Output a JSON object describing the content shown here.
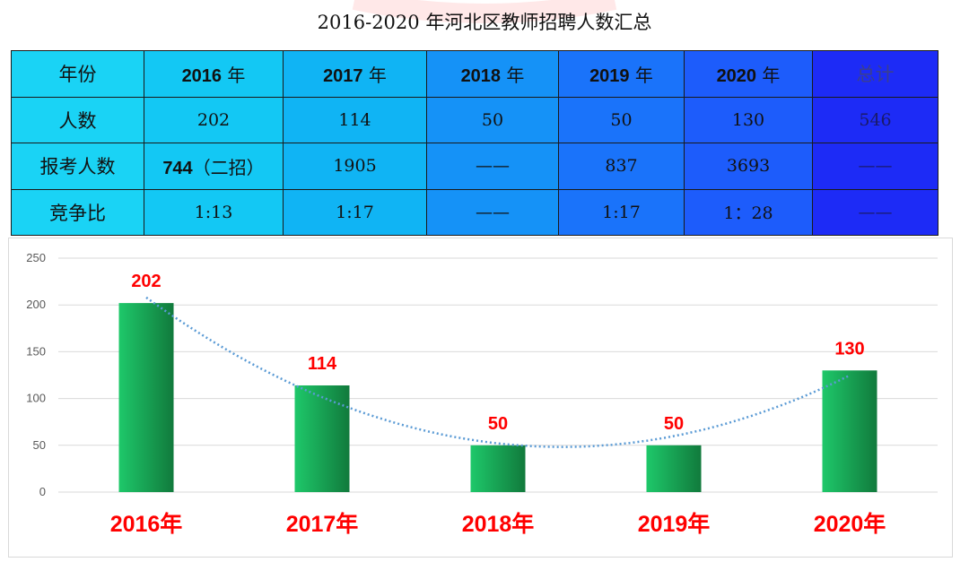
{
  "title": "2016-2020 年河北区教师招聘人数汇总",
  "table": {
    "header": [
      "年份",
      "2016",
      "2017",
      "2018",
      "2019",
      "2020",
      "总计"
    ],
    "year_suffix": " 年",
    "rows": [
      {
        "label": "人数",
        "cells": [
          "202",
          "114",
          "50",
          "50",
          "130",
          "546"
        ]
      },
      {
        "label": "报考人数",
        "cells_first_bold": "744",
        "cells_first_rest": "（二招）",
        "cells": [
          "1905",
          "——",
          "837",
          "3693",
          "——"
        ]
      },
      {
        "label": "竞争比",
        "cells": [
          "1:13",
          "1:17",
          "——",
          "1:17",
          "1：28",
          "——"
        ]
      }
    ],
    "colors": {
      "label_col": "#1ad3f5",
      "c2016": "#13c8f4",
      "c2017": "#10b4f4",
      "c2018": "#1592f7",
      "c2019": "#1a73fa",
      "c2020": "#1d5cfb",
      "total": "#1d2bf6"
    }
  },
  "chart_data": {
    "type": "bar",
    "categories": [
      "2016年",
      "2017年",
      "2018年",
      "2019年",
      "2020年"
    ],
    "values": [
      202,
      114,
      50,
      50,
      130
    ],
    "data_labels": [
      "202",
      "114",
      "50",
      "50",
      "130"
    ],
    "y_ticks": [
      "0",
      "50",
      "100",
      "150",
      "200",
      "250"
    ],
    "ylim": [
      0,
      250
    ],
    "grid": true,
    "trendline": "polynomial (dotted)",
    "colors": {
      "bar_light": "#1ec86a",
      "bar_dark": "#117a3c",
      "trendline": "#5b9bd5",
      "labels": "#ff0000",
      "grid": "#d9d9d9"
    }
  }
}
